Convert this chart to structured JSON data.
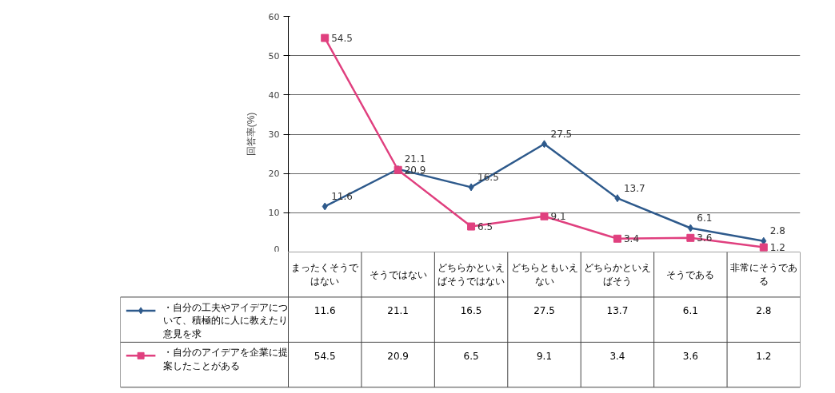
{
  "chart_data": {
    "type": "line",
    "ylabel": "回答率(%)",
    "categories": [
      "まったくそうではない",
      "そうではない",
      "どちらかといえばそうではない",
      "どちらともいえない",
      "どちらかといえばそう",
      "そうである",
      "非常にそうである"
    ],
    "series": [
      {
        "name": "・自分の工夫やアイデアについて、積極的に人に教えたり意見を求",
        "color": "#2e5a8c",
        "marker": "diamond",
        "values": [
          11.6,
          21.1,
          16.5,
          27.5,
          13.7,
          6.1,
          2.8
        ],
        "value_labels": [
          "11.6",
          "21.1",
          "16.5",
          "27.5",
          "13.7",
          "6.1",
          "2.8"
        ]
      },
      {
        "name": "・自分のアイデアを企業に提案したことがある",
        "color": "#e0407f",
        "marker": "square",
        "values": [
          54.5,
          20.9,
          6.5,
          9.1,
          3.4,
          3.6,
          1.2
        ],
        "value_labels": [
          "54.5",
          "20.9",
          "6.5",
          "9.1",
          "3.4",
          "3.6",
          "1.2"
        ]
      }
    ],
    "ylim": [
      0,
      60
    ],
    "yticks": [
      0,
      10,
      20,
      30,
      40,
      50,
      60
    ],
    "grid": "y",
    "legend": "bottom",
    "data_labels": true,
    "line_style": "solid"
  }
}
